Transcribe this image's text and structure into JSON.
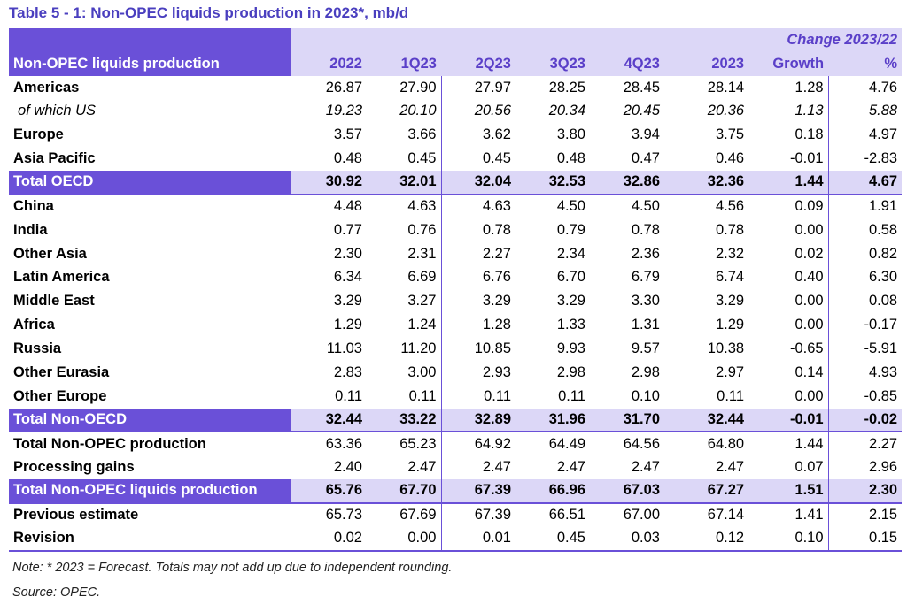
{
  "title": "Table 5 - 1: Non-OPEC liquids production in 2023*, mb/d",
  "table": {
    "row_header": "Non-OPEC liquids production",
    "group_header": "Change 2023/22",
    "columns": [
      "2022",
      "1Q23",
      "2Q23",
      "3Q23",
      "4Q23",
      "2023",
      "Growth",
      "%"
    ],
    "rows": [
      {
        "label": "Americas",
        "values": [
          "26.87",
          "27.90",
          "27.97",
          "28.25",
          "28.45",
          "28.14",
          "1.28",
          "4.76"
        ]
      },
      {
        "label": "of which US",
        "values": [
          "19.23",
          "20.10",
          "20.56",
          "20.34",
          "20.45",
          "20.36",
          "1.13",
          "5.88"
        ]
      },
      {
        "label": "Europe",
        "values": [
          "3.57",
          "3.66",
          "3.62",
          "3.80",
          "3.94",
          "3.75",
          "0.18",
          "4.97"
        ]
      },
      {
        "label": "Asia Pacific",
        "values": [
          "0.48",
          "0.45",
          "0.45",
          "0.48",
          "0.47",
          "0.46",
          "-0.01",
          "-2.83"
        ]
      },
      {
        "label": "Total OECD",
        "values": [
          "30.92",
          "32.01",
          "32.04",
          "32.53",
          "32.86",
          "32.36",
          "1.44",
          "4.67"
        ]
      },
      {
        "label": "China",
        "values": [
          "4.48",
          "4.63",
          "4.63",
          "4.50",
          "4.50",
          "4.56",
          "0.09",
          "1.91"
        ]
      },
      {
        "label": "India",
        "values": [
          "0.77",
          "0.76",
          "0.78",
          "0.79",
          "0.78",
          "0.78",
          "0.00",
          "0.58"
        ]
      },
      {
        "label": "Other Asia",
        "values": [
          "2.30",
          "2.31",
          "2.27",
          "2.34",
          "2.36",
          "2.32",
          "0.02",
          "0.82"
        ]
      },
      {
        "label": "Latin America",
        "values": [
          "6.34",
          "6.69",
          "6.76",
          "6.70",
          "6.79",
          "6.74",
          "0.40",
          "6.30"
        ]
      },
      {
        "label": "Middle East",
        "values": [
          "3.29",
          "3.27",
          "3.29",
          "3.29",
          "3.30",
          "3.29",
          "0.00",
          "0.08"
        ]
      },
      {
        "label": "Africa",
        "values": [
          "1.29",
          "1.24",
          "1.28",
          "1.33",
          "1.31",
          "1.29",
          "0.00",
          "-0.17"
        ]
      },
      {
        "label": "Russia",
        "values": [
          "11.03",
          "11.20",
          "10.85",
          "9.93",
          "9.57",
          "10.38",
          "-0.65",
          "-5.91"
        ]
      },
      {
        "label": "Other Eurasia",
        "values": [
          "2.83",
          "3.00",
          "2.93",
          "2.98",
          "2.98",
          "2.97",
          "0.14",
          "4.93"
        ]
      },
      {
        "label": "Other Europe",
        "values": [
          "0.11",
          "0.11",
          "0.11",
          "0.11",
          "0.10",
          "0.11",
          "0.00",
          "-0.85"
        ]
      },
      {
        "label": "Total Non-OECD",
        "values": [
          "32.44",
          "33.22",
          "32.89",
          "31.96",
          "31.70",
          "32.44",
          "-0.01",
          "-0.02"
        ]
      },
      {
        "label": "Total Non-OPEC production",
        "values": [
          "63.36",
          "65.23",
          "64.92",
          "64.49",
          "64.56",
          "64.80",
          "1.44",
          "2.27"
        ]
      },
      {
        "label": "Processing gains",
        "values": [
          "2.40",
          "2.47",
          "2.47",
          "2.47",
          "2.47",
          "2.47",
          "0.07",
          "2.96"
        ]
      },
      {
        "label": "Total Non-OPEC liquids production",
        "values": [
          "65.76",
          "67.70",
          "67.39",
          "66.96",
          "67.03",
          "67.27",
          "1.51",
          "2.30"
        ]
      },
      {
        "label": "Previous estimate",
        "values": [
          "65.73",
          "67.69",
          "67.39",
          "66.51",
          "67.00",
          "67.14",
          "1.41",
          "2.15"
        ]
      },
      {
        "label": "Revision",
        "values": [
          "0.02",
          "0.00",
          "0.01",
          "0.45",
          "0.03",
          "0.12",
          "0.10",
          "0.15"
        ]
      }
    ]
  },
  "note": "Note: * 2023 = Forecast. Totals may not add up due to independent rounding.",
  "source": "Source: OPEC."
}
